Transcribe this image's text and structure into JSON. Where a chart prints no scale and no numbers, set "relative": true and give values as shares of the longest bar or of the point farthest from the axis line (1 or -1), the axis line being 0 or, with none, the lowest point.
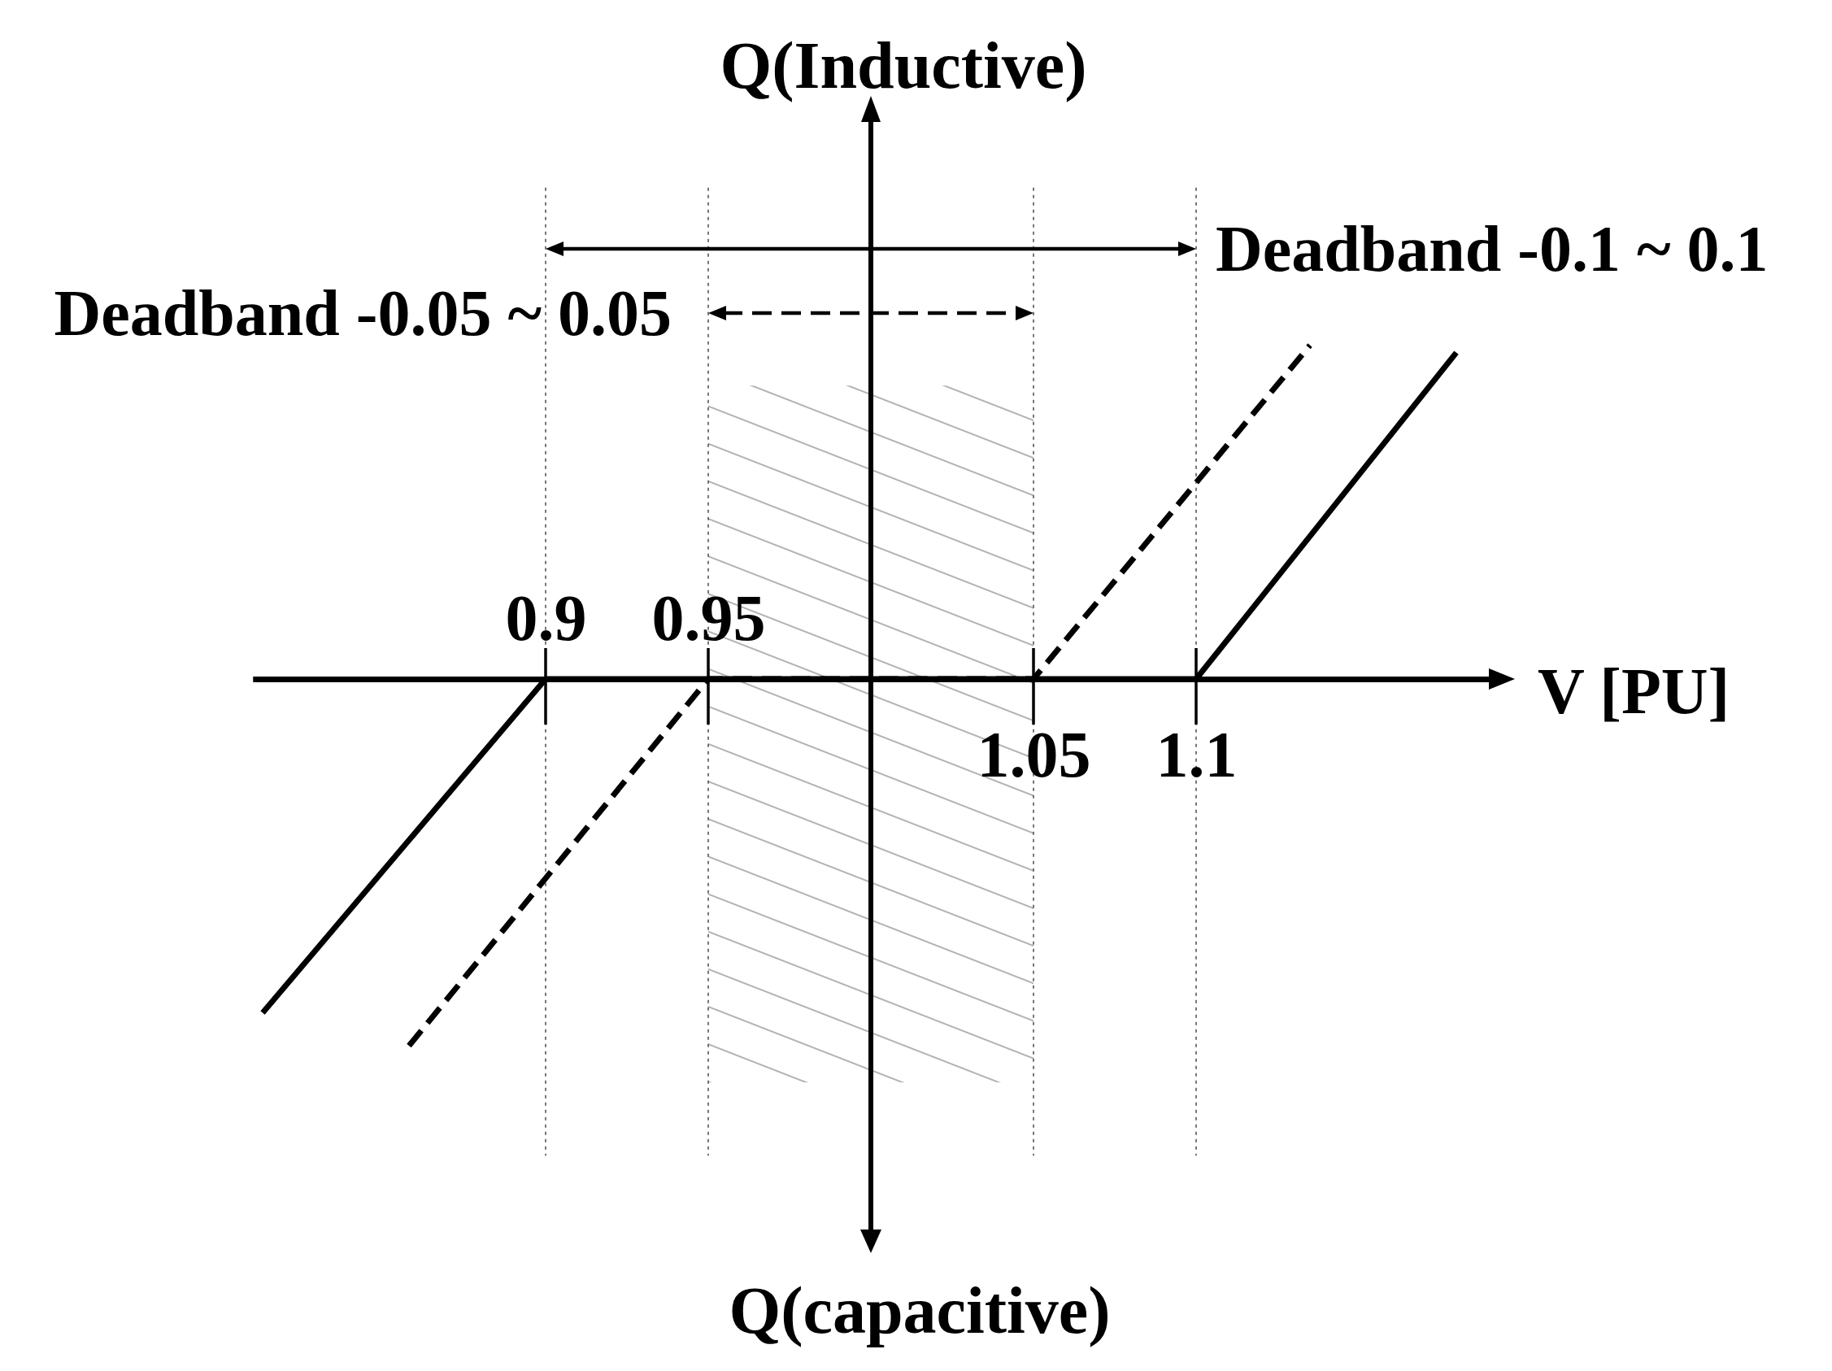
{
  "chart_data": {
    "type": "line",
    "relative": true,
    "xlabel": "V [PU]",
    "ylabel": "Q(Inductive)",
    "annotations": [
      "Deadband -0.1 ~ 0.1",
      "Deadband -0.05 ~ 0.05",
      "Q(capacitive)"
    ],
    "xlim": [
      0.81,
      1.195
    ],
    "xticks": [
      {
        "value": 0.9,
        "label": null
      },
      {
        "value": 0.95,
        "label": null
      },
      1.05,
      1.1
    ],
    "x2lim": [
      0.81,
      1.195
    ],
    "x2ticks": [
      0.9,
      0.95,
      {
        "value": 1.05,
        "label": null
      },
      {
        "value": 1.1,
        "label": null
      }
    ],
    "grid": "x",
    "series": [
      {
        "color": "#000000",
        "line_style": "solid",
        "x": [
          0.813,
          0.9,
          1.1,
          1.18
        ],
        "values": [
          -0.91,
          0,
          0,
          0.89
        ]
      },
      {
        "color": "#000000",
        "line_style": "dashed",
        "x": [
          0.858,
          0.95,
          1.05,
          1.135
        ],
        "values": [
          -1,
          0,
          0,
          0.91
        ]
      }
    ],
    "ref_lines": [
      {
        "axis": "x",
        "value": 1,
        "color": "#000000",
        "line_style": "solid"
      }
    ],
    "bands": [
      {
        "axis": "x",
        "from": 0.95,
        "to": 1.05,
        "color": "#9a9a9a"
      }
    ]
  }
}
